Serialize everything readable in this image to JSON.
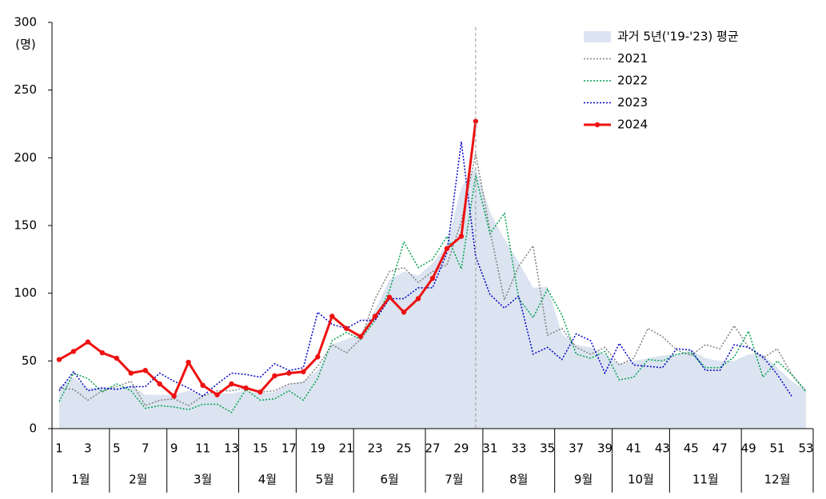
{
  "chart_data": {
    "type": "line",
    "ylabel": "(명)",
    "x": [
      1,
      2,
      3,
      4,
      5,
      6,
      7,
      8,
      9,
      10,
      11,
      12,
      13,
      14,
      15,
      16,
      17,
      18,
      19,
      20,
      21,
      22,
      23,
      24,
      25,
      26,
      27,
      28,
      29,
      30,
      31,
      32,
      33,
      34,
      35,
      36,
      37,
      38,
      39,
      40,
      41,
      42,
      43,
      44,
      45,
      46,
      47,
      48,
      49,
      50,
      51,
      52,
      53
    ],
    "xticks": [
      1,
      3,
      5,
      7,
      9,
      11,
      13,
      15,
      17,
      19,
      21,
      23,
      25,
      27,
      29,
      31,
      33,
      35,
      37,
      39,
      41,
      43,
      45,
      47,
      49,
      51,
      53
    ],
    "xlim": [
      1,
      53
    ],
    "ylim": [
      0,
      300
    ],
    "yticks": [
      0,
      50,
      100,
      150,
      200,
      250,
      300
    ],
    "months": [
      "1월",
      "2월",
      "3월",
      "4월",
      "5월",
      "6월",
      "7월",
      "8월",
      "9월",
      "10월",
      "11월",
      "12월"
    ],
    "legend": "upper right",
    "series": [
      {
        "name": "과거 5년('19-'23) 평균",
        "type": "area",
        "color": "#dbe4f0",
        "values": [
          31,
          38,
          30,
          31,
          30,
          32,
          25,
          25,
          25,
          28,
          25,
          26,
          26,
          28,
          26,
          27,
          33,
          35,
          43,
          62,
          66,
          70,
          88,
          110,
          116,
          113,
          122,
          136,
          178,
          193,
          160,
          140,
          123,
          104,
          105,
          70,
          62,
          60,
          55,
          48,
          50,
          52,
          54,
          55,
          58,
          52,
          50,
          50,
          55,
          55,
          45,
          35,
          28
        ]
      },
      {
        "name": "2021",
        "type": "dotted",
        "color": "#808080",
        "values": [
          30,
          29,
          21,
          28,
          31,
          35,
          17,
          21,
          22,
          17,
          24,
          28,
          28,
          30,
          27,
          28,
          33,
          34,
          46,
          62,
          56,
          66,
          96,
          116,
          119,
          108,
          116,
          121,
          153,
          203,
          146,
          95,
          120,
          135,
          69,
          74,
          60,
          55,
          60,
          47,
          52,
          74,
          68,
          58,
          54,
          62,
          59,
          76,
          60,
          52,
          59,
          40,
          28
        ]
      },
      {
        "name": "2022",
        "type": "dotted",
        "color": "#00a050",
        "values": [
          20,
          41,
          37,
          27,
          33,
          28,
          15,
          17,
          16,
          14,
          18,
          18,
          12,
          29,
          21,
          22,
          28,
          21,
          37,
          65,
          71,
          66,
          80,
          102,
          138,
          119,
          125,
          142,
          118,
          187,
          144,
          159,
          96,
          82,
          103,
          84,
          55,
          52,
          57,
          36,
          38,
          51,
          50,
          55,
          56,
          45,
          45,
          53,
          72,
          38,
          50,
          40,
          27
        ]
      },
      {
        "name": "2023",
        "type": "dotted",
        "color": "#0000c8",
        "values": [
          28,
          42,
          28,
          30,
          29,
          31,
          31,
          41,
          35,
          30,
          24,
          33,
          41,
          40,
          38,
          48,
          43,
          45,
          86,
          77,
          74,
          80,
          80,
          96,
          96,
          104,
          104,
          130,
          212,
          127,
          99,
          89,
          98,
          55,
          60,
          51,
          70,
          65,
          41,
          63,
          47,
          46,
          45,
          59,
          58,
          43,
          43,
          62,
          60,
          53,
          40,
          24,
          null
        ]
      },
      {
        "name": "2024",
        "type": "solid",
        "color": "#ee1111",
        "values": [
          51,
          57,
          64,
          56,
          52,
          41,
          43,
          33,
          24,
          49,
          32,
          25,
          33,
          30,
          27,
          39,
          41,
          42,
          53,
          83,
          74,
          68,
          83,
          97,
          86,
          96,
          111,
          133,
          142,
          227,
          null,
          null,
          null,
          null,
          null,
          null,
          null,
          null,
          null,
          null,
          null,
          null,
          null,
          null,
          null,
          null,
          null,
          null,
          null,
          null,
          null,
          null,
          null
        ]
      }
    ]
  }
}
